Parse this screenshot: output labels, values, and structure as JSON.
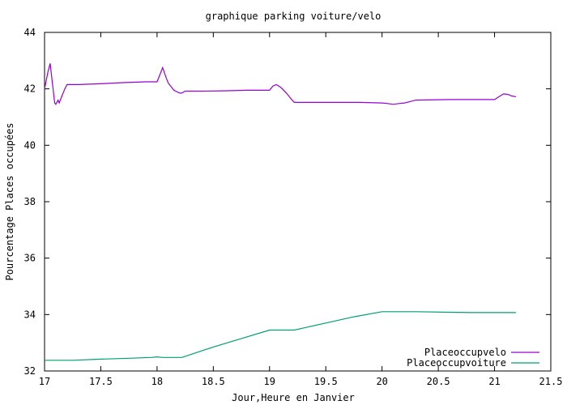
{
  "chart_data": {
    "type": "line",
    "title": "graphique parking voiture/velo",
    "xlabel": "Jour,Heure en Janvier",
    "ylabel": "Pourcentage Places occupées",
    "xlim": [
      17,
      21.5
    ],
    "ylim": [
      32,
      44
    ],
    "xticks": [
      17,
      17.5,
      18,
      18.5,
      19,
      19.5,
      20,
      20.5,
      21,
      21.5
    ],
    "xtick_labels": [
      "17",
      "17.5",
      "18",
      "18.5",
      "19",
      "19.5",
      "20",
      "20.5",
      "21",
      "21.5"
    ],
    "yticks": [
      32,
      34,
      36,
      38,
      40,
      42,
      44
    ],
    "ytick_labels": [
      "32",
      "34",
      "36",
      "38",
      "40",
      "42",
      "44"
    ],
    "grid": false,
    "legend_position": "bottom-right",
    "series": [
      {
        "name": "Placeoccupvelo",
        "color": "#9400d3",
        "x": [
          17.0,
          17.03,
          17.05,
          17.07,
          17.09,
          17.1,
          17.12,
          17.13,
          17.15,
          17.18,
          17.2,
          17.3,
          17.5,
          17.7,
          17.9,
          18.0,
          18.02,
          18.05,
          18.08,
          18.1,
          18.15,
          18.2,
          18.22,
          18.25,
          18.4,
          18.6,
          18.8,
          19.0,
          19.03,
          19.06,
          19.1,
          19.15,
          19.2,
          19.22,
          19.3,
          19.5,
          19.8,
          20.0,
          20.05,
          20.1,
          20.15,
          20.2,
          20.3,
          20.6,
          20.8,
          21.0,
          21.05,
          21.08,
          21.12,
          21.15,
          21.19
        ],
        "y": [
          42.0,
          42.6,
          42.9,
          42.2,
          41.5,
          41.45,
          41.6,
          41.5,
          41.7,
          42.0,
          42.15,
          42.15,
          42.18,
          42.22,
          42.25,
          42.25,
          42.45,
          42.75,
          42.4,
          42.2,
          41.95,
          41.85,
          41.85,
          41.92,
          41.92,
          41.93,
          41.95,
          41.95,
          42.1,
          42.15,
          42.05,
          41.85,
          41.6,
          41.52,
          41.52,
          41.52,
          41.52,
          41.5,
          41.48,
          41.45,
          41.48,
          41.5,
          41.6,
          41.62,
          41.62,
          41.62,
          41.75,
          41.82,
          41.8,
          41.75,
          41.72
        ]
      },
      {
        "name": "Placeoccupvoiture",
        "color": "#009e73",
        "x": [
          17.0,
          17.25,
          17.5,
          17.75,
          17.95,
          18.0,
          18.05,
          18.22,
          18.5,
          18.75,
          19.0,
          19.22,
          19.5,
          19.75,
          20.0,
          20.3,
          20.6,
          20.8,
          21.0,
          21.19
        ],
        "y": [
          32.38,
          32.38,
          32.42,
          32.45,
          32.48,
          32.5,
          32.48,
          32.48,
          32.85,
          33.15,
          33.45,
          33.45,
          33.7,
          33.92,
          34.1,
          34.1,
          34.08,
          34.07,
          34.07,
          34.07
        ]
      }
    ]
  }
}
